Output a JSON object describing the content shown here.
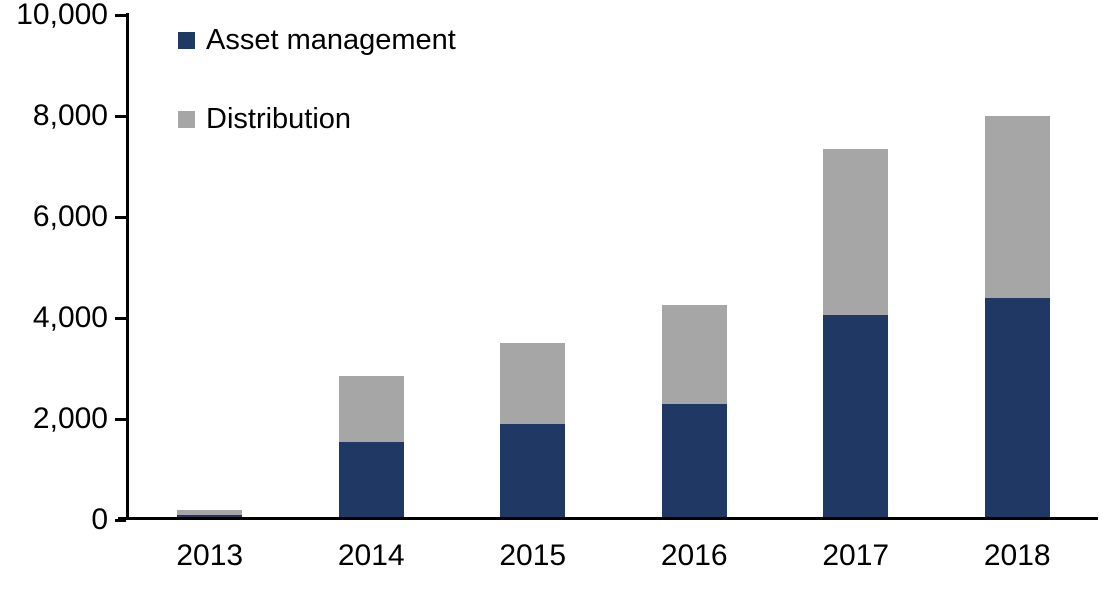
{
  "chart_data": {
    "type": "bar",
    "stacked": true,
    "title": "",
    "xlabel": "",
    "ylabel": "",
    "categories": [
      "2013",
      "2014",
      "2015",
      "2016",
      "2017",
      "2018"
    ],
    "series": [
      {
        "name": "Asset management",
        "color": "#1f3864",
        "values": [
          100,
          1550,
          1900,
          2300,
          4050,
          4400
        ]
      },
      {
        "name": "Distribution",
        "color": "#a6a6a6",
        "values": [
          90,
          1300,
          1600,
          1950,
          3300,
          3600
        ]
      }
    ],
    "ylim": [
      0,
      10000
    ],
    "yticks": [
      0,
      2000,
      4000,
      6000,
      8000,
      10000
    ],
    "ytick_labels": [
      "0",
      "2,000",
      "4,000",
      "6,000",
      "8,000",
      "10,000"
    ],
    "grid": false,
    "legend_position": "top-left-inside",
    "axis_color": "#000000",
    "text_color": "#000000",
    "background_color": "#ffffff"
  }
}
